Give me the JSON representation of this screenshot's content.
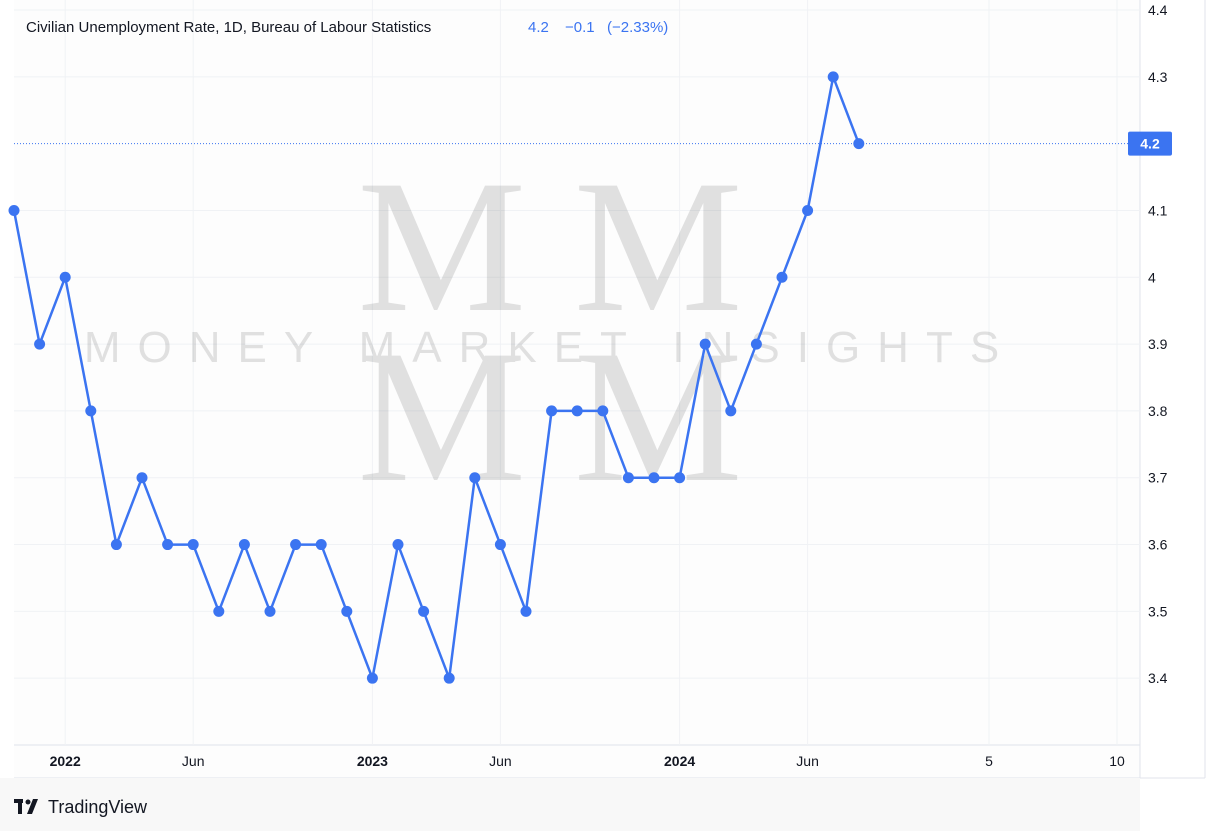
{
  "header": {
    "title": "Civilian Unemployment Rate, 1D, Bureau of Labour Statistics",
    "last": "4.2",
    "change": "−0.1",
    "change_percent": "(−2.33%)"
  },
  "watermark": "MONEY MARKET INSIGHTS",
  "brand": "TradingView",
  "chart_data": {
    "type": "line",
    "x": [
      "2021-11",
      "2021-12",
      "2022-01",
      "2022-02",
      "2022-03",
      "2022-04",
      "2022-05",
      "2022-06",
      "2022-07",
      "2022-08",
      "2022-09",
      "2022-10",
      "2022-11",
      "2022-12",
      "2023-01",
      "2023-02",
      "2023-03",
      "2023-04",
      "2023-05",
      "2023-06",
      "2023-07",
      "2023-08",
      "2023-09",
      "2023-10",
      "2023-11",
      "2023-12",
      "2024-01",
      "2024-02",
      "2024-03",
      "2024-04",
      "2024-05",
      "2024-06",
      "2024-07",
      "2024-08"
    ],
    "series": [
      {
        "name": "Civilian Unemployment Rate",
        "color": "#3b74f1",
        "values": [
          4.1,
          3.9,
          4.0,
          3.8,
          3.6,
          3.7,
          3.6,
          3.6,
          3.5,
          3.6,
          3.5,
          3.6,
          3.6,
          3.5,
          3.4,
          3.6,
          3.5,
          3.4,
          3.7,
          3.6,
          3.5,
          3.8,
          3.8,
          3.8,
          3.7,
          3.7,
          3.7,
          3.9,
          3.8,
          3.9,
          4.0,
          4.1,
          4.3,
          4.2
        ]
      }
    ],
    "ylim": [
      3.3,
      4.415
    ],
    "yticks": [
      3.4,
      3.5,
      3.6,
      3.7,
      3.8,
      3.9,
      4,
      4.1,
      4.3,
      4.4
    ],
    "xticks": [
      {
        "value": "2022-01",
        "label": "2022"
      },
      {
        "value": "2022-06",
        "label": "Jun"
      },
      {
        "value": "2023-01",
        "label": "2023"
      },
      {
        "value": "2023-06",
        "label": "Jun"
      },
      {
        "value": "2024-01",
        "label": "2024"
      },
      {
        "value": "2024-06",
        "label": "Jun"
      },
      {
        "value": "2024-08-05",
        "label": "5"
      },
      {
        "value": "2024-08-10",
        "label": "10"
      }
    ],
    "grid": true
  }
}
